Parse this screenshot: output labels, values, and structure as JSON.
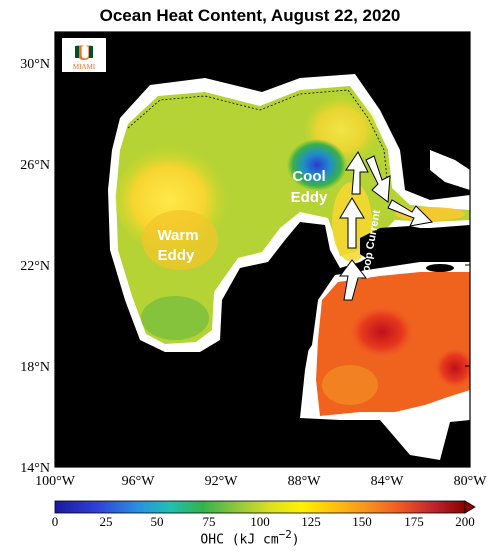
{
  "title": "Ocean Heat Content, August 22, 2020",
  "logo": {
    "letter": "U",
    "text": "MIAMI",
    "colors": {
      "orange": "#f26d21",
      "green": "#005030"
    }
  },
  "lat_ticks": [
    "30°N",
    "26°N",
    "22°N",
    "18°N",
    "14°N"
  ],
  "lon_ticks": [
    "100°W",
    "96°W",
    "92°W",
    "88°W",
    "84°W",
    "80°W"
  ],
  "annotations": {
    "warm_eddy": [
      "Warm",
      "Eddy"
    ],
    "cool_eddy": [
      "Cool",
      "Eddy"
    ],
    "loop_current": "Loop Current"
  },
  "colorbar": {
    "ticks": [
      "0",
      "25",
      "50",
      "75",
      "100",
      "125",
      "150",
      "175",
      "200"
    ],
    "label": "OHC (kJ cm",
    "label_exp": "−2",
    "label_end": ")",
    "colors": [
      "#1a1a9e",
      "#2f3fd6",
      "#2a8fe0",
      "#1fc0b5",
      "#32b34a",
      "#8cc63f",
      "#d6df23",
      "#fff200",
      "#ffc20e",
      "#f7941d",
      "#f15a24",
      "#e8371f",
      "#c1272d",
      "#8b0000"
    ]
  },
  "map_colors": {
    "land": "#000000",
    "no_data": "#ffffff",
    "gulf": "#b5d334",
    "caribbean": "#f0631f"
  }
}
